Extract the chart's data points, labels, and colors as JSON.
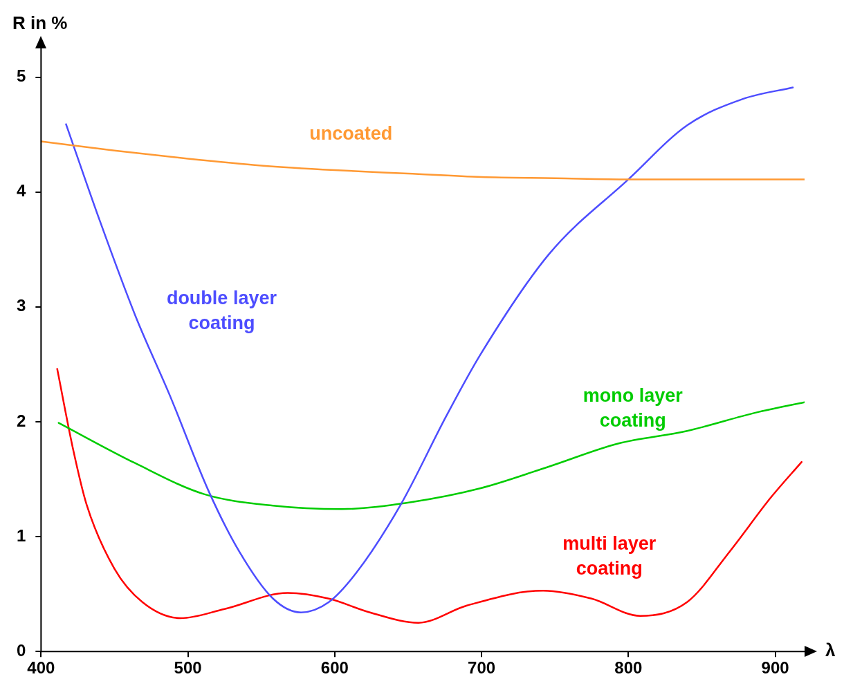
{
  "chart_data": {
    "type": "line",
    "xlabel": "λ",
    "ylabel": "R in %",
    "xlim": [
      400,
      920
    ],
    "ylim": [
      0,
      5.25
    ],
    "xticks": [
      400,
      500,
      600,
      700,
      800,
      900
    ],
    "yticks": [
      0,
      1,
      2,
      3,
      4,
      5
    ],
    "grid": false,
    "legend": false,
    "marker": "none",
    "line_style": "solid",
    "series": [
      {
        "name": "uncoated",
        "color": "#ff9933",
        "x": [
          400,
          450,
          500,
          550,
          600,
          650,
          700,
          750,
          800,
          850,
          920
        ],
        "values": [
          4.44,
          4.36,
          4.29,
          4.23,
          4.19,
          4.16,
          4.13,
          4.12,
          4.11,
          4.11,
          4.11
        ]
      },
      {
        "name": "double layer coating",
        "color": "#4d4dff",
        "x": [
          417,
          440,
          464,
          488,
          514,
          535,
          558,
          577,
          596,
          615,
          645,
          676,
          699,
          746,
          800,
          840,
          878,
          912
        ],
        "values": [
          4.59,
          3.75,
          2.93,
          2.22,
          1.4,
          0.87,
          0.46,
          0.34,
          0.43,
          0.69,
          1.28,
          2.05,
          2.58,
          3.46,
          4.11,
          4.58,
          4.81,
          4.91
        ]
      },
      {
        "name": "mono layer coating",
        "color": "#00cc00",
        "x": [
          412,
          464,
          511,
          558,
          605,
          652,
          699,
          746,
          793,
          840,
          887,
          920
        ],
        "values": [
          1.99,
          1.64,
          1.37,
          1.27,
          1.24,
          1.3,
          1.42,
          1.61,
          1.81,
          1.92,
          2.08,
          2.17
        ]
      },
      {
        "name": "multi layer coating",
        "color": "#ff0000",
        "x": [
          411,
          422,
          431,
          450,
          469,
          495,
          525,
          568,
          596,
          624,
          657,
          690,
          742,
          775,
          808,
          840,
          869,
          897,
          918
        ],
        "values": [
          2.46,
          1.75,
          1.28,
          0.72,
          0.43,
          0.29,
          0.37,
          0.51,
          0.46,
          0.34,
          0.25,
          0.4,
          0.53,
          0.46,
          0.31,
          0.43,
          0.87,
          1.34,
          1.65
        ]
      }
    ]
  }
}
